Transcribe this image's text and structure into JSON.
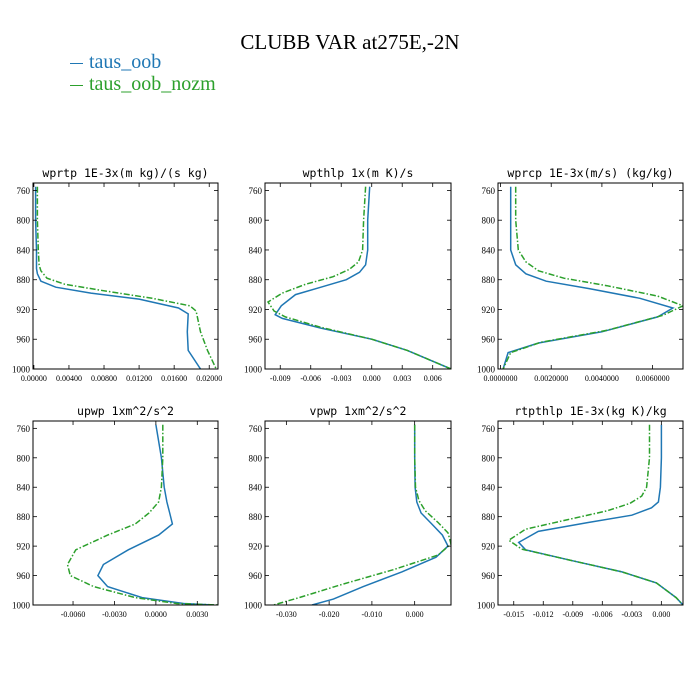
{
  "title": "CLUBB VAR at275E,-2N",
  "legend": [
    {
      "label": "taus_oob",
      "color": "#1f77b4"
    },
    {
      "label": "taus_oob_nozm",
      "color": "#2ca02c"
    }
  ],
  "chart_data": [
    {
      "type": "line",
      "title": "wprtp  1E-3x(m kg)/(s kg)",
      "ylim": [
        1000,
        750
      ],
      "yticks": [
        "760",
        "800",
        "840",
        "880",
        "920",
        "960",
        "1000"
      ],
      "xlim": [
        -0.0001,
        0.021
      ],
      "xticks": [
        0,
        0.004,
        0.008,
        0.012,
        0.016,
        0.02
      ],
      "xticklabels": [
        "0.00000",
        "0.00400",
        "0.00800",
        "0.01200",
        "0.01600",
        "0.02000"
      ],
      "series": [
        {
          "color": "#1f77b4",
          "x": [
            0.0002,
            0.0002,
            0.0003,
            0.0003,
            0.0004,
            0.0008,
            0.0025,
            0.0065,
            0.012,
            0.0165,
            0.0176,
            0.0175,
            0.0176,
            0.019
          ],
          "y": [
            755,
            800,
            840,
            865,
            872,
            882,
            890,
            898,
            906,
            918,
            926,
            950,
            975,
            1000
          ]
        },
        {
          "color": "#2ca02c",
          "x": [
            0.0004,
            0.0004,
            0.0005,
            0.0006,
            0.0008,
            0.0015,
            0.0035,
            0.0075,
            0.0135,
            0.0178,
            0.0185,
            0.019,
            0.0198,
            0.0208
          ],
          "y": [
            755,
            800,
            840,
            860,
            868,
            878,
            886,
            894,
            905,
            915,
            922,
            950,
            975,
            1000
          ]
        }
      ]
    },
    {
      "type": "line",
      "title": "wpthlp  1x(m K)/s",
      "ylim": [
        1000,
        750
      ],
      "yticks": [
        "760",
        "800",
        "840",
        "880",
        "920",
        "960",
        "1000"
      ],
      "xlim": [
        -0.0105,
        0.0078
      ],
      "xticks": [
        -0.009,
        -0.006,
        -0.003,
        0,
        0.003,
        0.006
      ],
      "xticklabels": [
        "-0.009",
        "-0.006",
        "-0.003",
        "0.000",
        "0.003",
        "0.006"
      ],
      "series": [
        {
          "color": "#1f77b4",
          "x": [
            -0.0002,
            -0.0004,
            -0.0004,
            -0.0006,
            -0.0012,
            -0.0025,
            -0.005,
            -0.0075,
            -0.0089,
            -0.0095,
            -0.0088,
            -0.005,
            0.0,
            0.0035,
            0.0078
          ],
          "y": [
            755,
            800,
            840,
            860,
            870,
            880,
            890,
            900,
            915,
            927,
            932,
            945,
            960,
            975,
            1000
          ]
        },
        {
          "color": "#2ca02c",
          "x": [
            -0.0006,
            -0.0008,
            -0.0009,
            -0.0013,
            -0.0022,
            -0.0038,
            -0.0065,
            -0.0088,
            -0.0102,
            -0.0096,
            -0.0085,
            -0.005,
            0.0,
            0.0035,
            0.0078
          ],
          "y": [
            755,
            800,
            840,
            856,
            866,
            876,
            886,
            898,
            910,
            922,
            930,
            944,
            960,
            975,
            1000
          ]
        }
      ]
    },
    {
      "type": "line",
      "title": "wprcp  1E-3x(m/s) (kg/kg)",
      "ylim": [
        1000,
        750
      ],
      "yticks": [
        "760",
        "800",
        "840",
        "880",
        "920",
        "960",
        "1000"
      ],
      "xlim": [
        -0.0001,
        0.0072
      ],
      "xticks": [
        0,
        0.002,
        0.004,
        0.006
      ],
      "xticklabels": [
        "0.0000000",
        "0.0020000",
        "0.0040000",
        "0.0060000"
      ],
      "series": [
        {
          "color": "#1f77b4",
          "x": [
            0.0004,
            0.0004,
            0.0004,
            0.0006,
            0.001,
            0.0018,
            0.0035,
            0.0055,
            0.0068,
            0.0062,
            0.004,
            0.0015,
            0.0003,
            0.0001
          ],
          "y": [
            755,
            800,
            840,
            860,
            872,
            882,
            892,
            905,
            918,
            930,
            950,
            965,
            978,
            1000
          ]
        },
        {
          "color": "#2ca02c",
          "x": [
            0.0006,
            0.0006,
            0.0007,
            0.001,
            0.0015,
            0.0025,
            0.0042,
            0.0062,
            0.0072,
            0.0064,
            0.0042,
            0.0016,
            0.0004,
            0.0001
          ],
          "y": [
            755,
            800,
            840,
            856,
            868,
            878,
            888,
            902,
            915,
            928,
            948,
            964,
            978,
            1000
          ]
        }
      ]
    },
    {
      "type": "line",
      "title": "upwp  1xm^2/s^2",
      "ylim": [
        1000,
        750
      ],
      "yticks": [
        "760",
        "800",
        "840",
        "880",
        "920",
        "960",
        "1000"
      ],
      "xlim": [
        -0.0089,
        0.0045
      ],
      "xticks": [
        -0.006,
        -0.003,
        0,
        0.003
      ],
      "xticklabels": [
        "-0.0060",
        "-0.0030",
        "0.0000",
        "0.0030"
      ],
      "series": [
        {
          "color": "#1f77b4",
          "x": [
            0.0,
            0.0004,
            0.0006,
            0.0008,
            0.001,
            0.0012,
            0.0002,
            -0.002,
            -0.0038,
            -0.0042,
            -0.0035,
            -0.001,
            0.002,
            0.0042
          ],
          "y": [
            755,
            800,
            840,
            860,
            875,
            890,
            905,
            925,
            945,
            960,
            975,
            990,
            998,
            1000
          ]
        },
        {
          "color": "#2ca02c",
          "x": [
            0.0005,
            0.0005,
            0.0004,
            0.0002,
            -0.0005,
            -0.0015,
            -0.0035,
            -0.0058,
            -0.0064,
            -0.0062,
            -0.0045,
            -0.0015,
            0.0015,
            0.0045
          ],
          "y": [
            755,
            800,
            840,
            860,
            875,
            890,
            905,
            925,
            945,
            960,
            975,
            990,
            998,
            1000
          ]
        }
      ]
    },
    {
      "type": "line",
      "title": "vpwp  1xm^2/s^2",
      "ylim": [
        1000,
        750
      ],
      "yticks": [
        "760",
        "800",
        "840",
        "880",
        "920",
        "960",
        "1000"
      ],
      "xlim": [
        -0.035,
        0.0085
      ],
      "xticks": [
        -0.03,
        -0.02,
        -0.01,
        0
      ],
      "xticklabels": [
        "-0.030",
        "-0.020",
        "-0.010",
        "0.000"
      ],
      "series": [
        {
          "color": "#1f77b4",
          "x": [
            0.0,
            0.0,
            0.0001,
            0.0005,
            0.0015,
            0.004,
            0.0065,
            0.0078,
            0.005,
            -0.003,
            -0.012,
            -0.019,
            -0.024
          ],
          "y": [
            755,
            800,
            840,
            860,
            875,
            890,
            905,
            920,
            935,
            955,
            975,
            992,
            1000
          ]
        },
        {
          "color": "#2ca02c",
          "x": [
            0.0,
            0.0,
            0.0002,
            0.001,
            0.0025,
            0.0055,
            0.0078,
            0.0085,
            0.0055,
            -0.005,
            -0.017,
            -0.027,
            -0.033
          ],
          "y": [
            755,
            800,
            840,
            858,
            872,
            888,
            902,
            917,
            932,
            952,
            972,
            990,
            1000
          ]
        }
      ]
    },
    {
      "type": "line",
      "title": "rtpthlp  1E-3x(kg K)/kg",
      "ylim": [
        1000,
        750
      ],
      "yticks": [
        "760",
        "800",
        "840",
        "880",
        "920",
        "960",
        "1000"
      ],
      "xlim": [
        -0.0166,
        0.0022
      ],
      "xticks": [
        -0.015,
        -0.012,
        -0.009,
        -0.006,
        -0.003,
        0
      ],
      "xticklabels": [
        "-0.015",
        "-0.012",
        "-0.009",
        "-0.006",
        "-0.003",
        "0.000"
      ],
      "series": [
        {
          "color": "#1f77b4",
          "x": [
            0.0,
            0.0,
            -0.0001,
            -0.0003,
            -0.001,
            -0.003,
            -0.0075,
            -0.0125,
            -0.0145,
            -0.0138,
            -0.009,
            -0.004,
            -0.0005,
            0.0015,
            0.0022
          ],
          "y": [
            755,
            800,
            840,
            860,
            868,
            878,
            888,
            900,
            915,
            925,
            940,
            955,
            970,
            990,
            1000
          ]
        },
        {
          "color": "#2ca02c",
          "x": [
            -0.0012,
            -0.0012,
            -0.0015,
            -0.002,
            -0.0032,
            -0.0055,
            -0.0095,
            -0.0138,
            -0.0155,
            -0.0142,
            -0.009,
            -0.004,
            -0.0005,
            0.0015,
            0.0022
          ],
          "y": [
            755,
            800,
            840,
            852,
            862,
            872,
            884,
            897,
            912,
            924,
            940,
            955,
            970,
            990,
            1000
          ]
        }
      ]
    }
  ]
}
